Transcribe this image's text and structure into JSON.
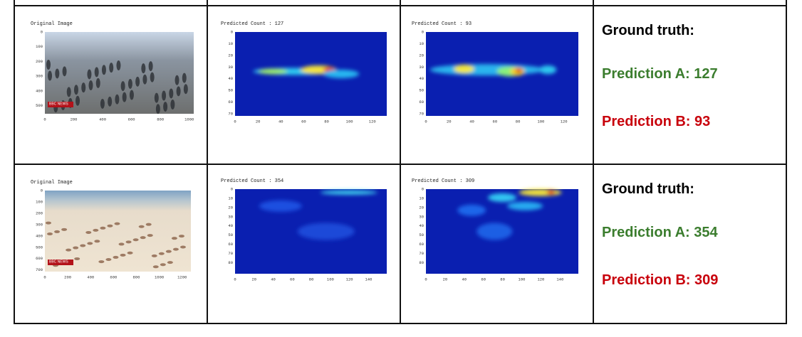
{
  "rows": [
    {
      "original": {
        "title": "Original Image",
        "logo": "BBC NEWS",
        "yticks": [
          0,
          100,
          200,
          300,
          400,
          500
        ],
        "xticks": [
          0,
          200,
          400,
          600,
          800,
          1000
        ]
      },
      "prediction_a": {
        "title": "Predicted Count :  127",
        "yticks": [
          0,
          10,
          20,
          30,
          40,
          50,
          60,
          70
        ],
        "xticks": [
          0,
          20,
          40,
          60,
          80,
          100,
          120
        ]
      },
      "prediction_b": {
        "title": "Predicted Count :  93",
        "yticks": [
          0,
          10,
          20,
          30,
          40,
          50,
          60,
          70
        ],
        "xticks": [
          0,
          20,
          40,
          60,
          80,
          100,
          120
        ]
      },
      "summary": {
        "ground_truth": "Ground truth:",
        "prediction_a": "Prediction A: 127",
        "prediction_b": "Prediction B: 93"
      }
    },
    {
      "original": {
        "title": "Original Image",
        "logo": "BBC NEWS",
        "yticks": [
          0,
          100,
          200,
          300,
          400,
          500,
          600,
          700
        ],
        "xticks": [
          0,
          200,
          400,
          600,
          800,
          1000,
          1200
        ]
      },
      "prediction_a": {
        "title": "Predicted Count :  354",
        "yticks": [
          0,
          10,
          20,
          30,
          40,
          50,
          60,
          70,
          80
        ],
        "xticks": [
          0,
          20,
          40,
          60,
          80,
          100,
          120,
          140
        ]
      },
      "prediction_b": {
        "title": "Predicted Count :  309",
        "yticks": [
          0,
          10,
          20,
          30,
          40,
          50,
          60,
          70,
          80
        ],
        "xticks": [
          0,
          20,
          40,
          60,
          80,
          100,
          120,
          140
        ]
      },
      "summary": {
        "ground_truth": "Ground truth:",
        "prediction_a": "Prediction A: 354",
        "prediction_b": "Prediction B: 309"
      }
    }
  ]
}
